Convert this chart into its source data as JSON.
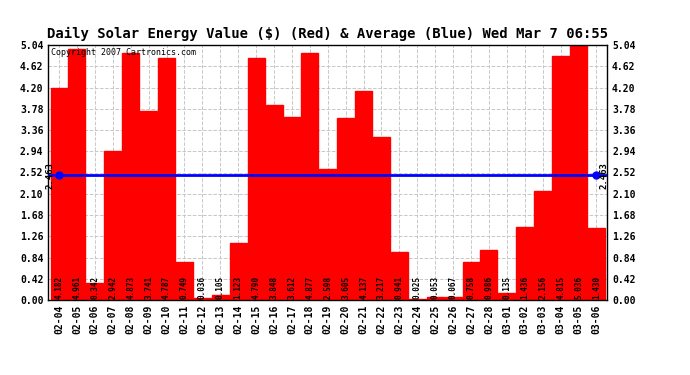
{
  "title": "Daily Solar Energy Value ($) (Red) & Average (Blue) Wed Mar 7 06:55",
  "copyright": "Copyright 2007 Cartronics.com",
  "average": 2.463,
  "bar_color": "#ff0000",
  "avg_line_color": "#0000ff",
  "background_color": "#ffffff",
  "plot_bg_color": "#ffffff",
  "grid_color": "#c8c8c8",
  "categories": [
    "02-04",
    "02-05",
    "02-06",
    "02-07",
    "02-08",
    "02-09",
    "02-10",
    "02-11",
    "02-12",
    "02-13",
    "02-14",
    "02-15",
    "02-16",
    "02-17",
    "02-18",
    "02-19",
    "02-20",
    "02-21",
    "02-22",
    "02-23",
    "02-24",
    "02-25",
    "02-26",
    "02-27",
    "02-28",
    "03-01",
    "03-02",
    "03-03",
    "03-04",
    "03-05",
    "03-06"
  ],
  "values": [
    4.182,
    4.961,
    0.342,
    2.942,
    4.873,
    3.741,
    4.787,
    0.749,
    0.036,
    0.105,
    1.123,
    4.79,
    3.848,
    3.612,
    4.877,
    2.598,
    3.605,
    4.137,
    3.217,
    0.941,
    0.025,
    0.053,
    0.067,
    0.758,
    0.986,
    0.135,
    1.436,
    2.156,
    4.815,
    5.036,
    1.43
  ],
  "ylim": [
    0.0,
    5.04
  ],
  "yticks": [
    0.0,
    0.42,
    0.84,
    1.26,
    1.68,
    2.1,
    2.52,
    2.94,
    3.36,
    3.78,
    4.2,
    4.62,
    5.04
  ],
  "title_fontsize": 10,
  "tick_fontsize": 7,
  "value_fontsize": 5.5,
  "copyright_fontsize": 6,
  "avg_label": "2.463",
  "avg_label_fontsize": 6.5
}
